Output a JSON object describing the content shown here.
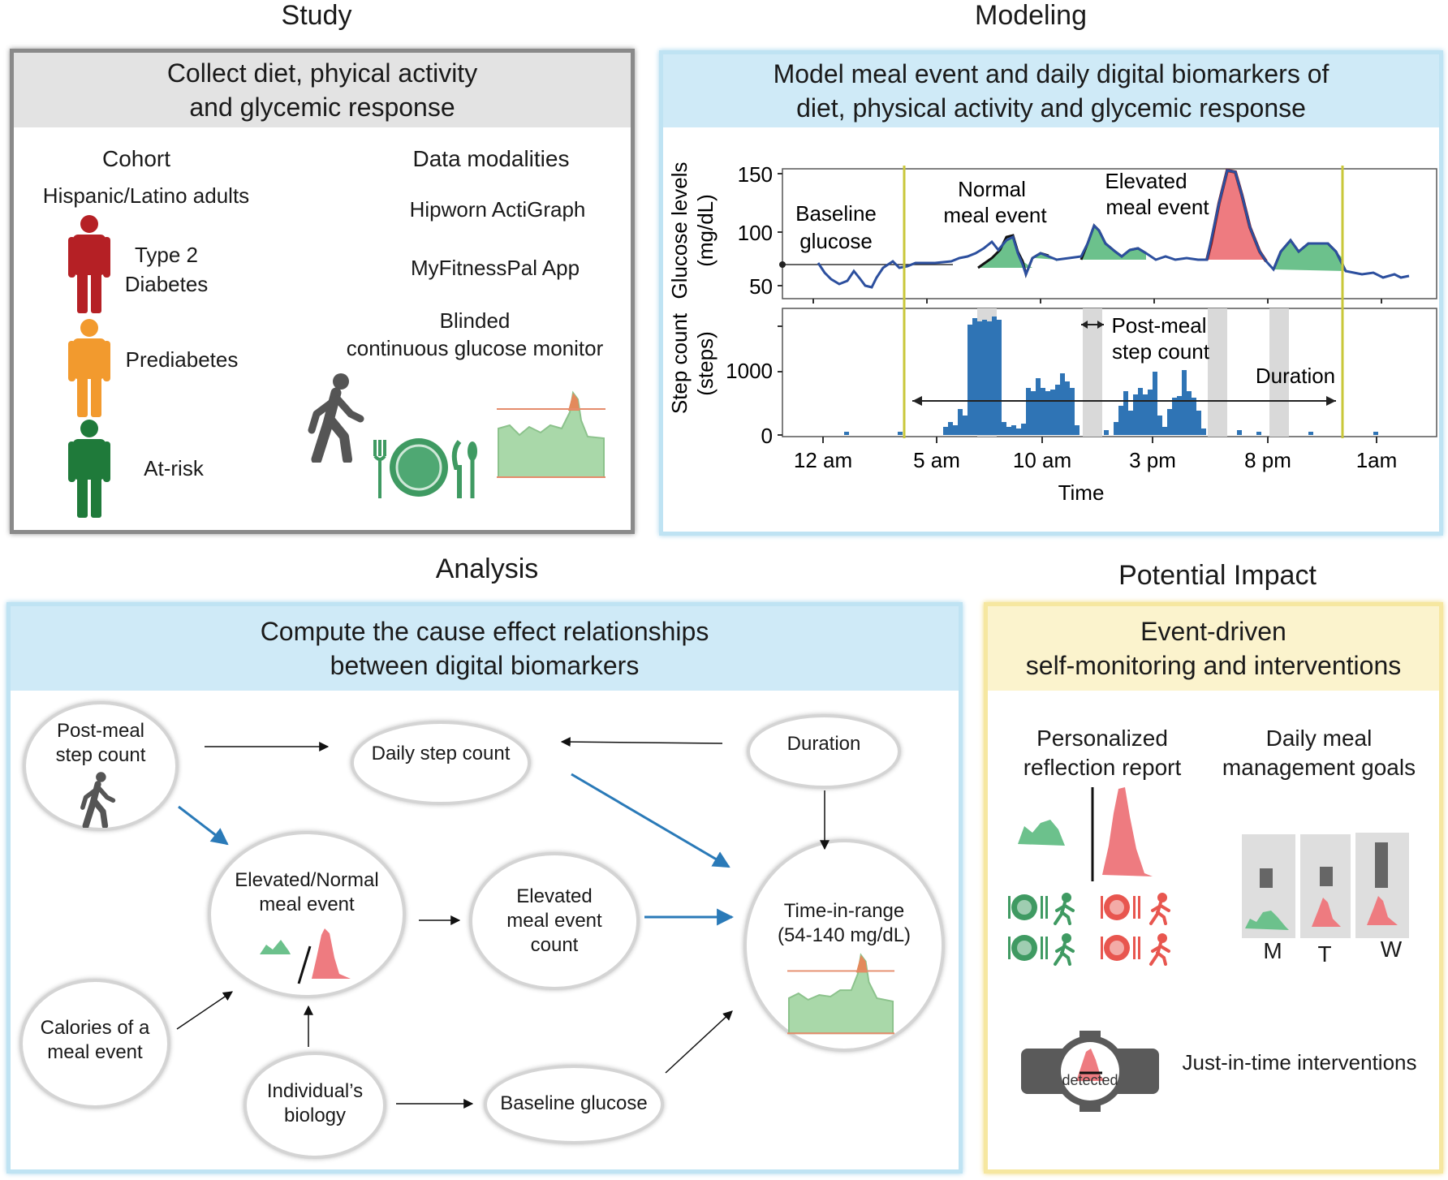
{
  "sections": {
    "study": "Study",
    "modeling": "Modeling",
    "analysis": "Analysis",
    "impact": "Potential Impact"
  },
  "study": {
    "header": [
      "Collect diet, phyical activity",
      "and glycemic response"
    ],
    "cohort_title": "Cohort",
    "cohort_subtitle": "Hispanic/Latino adults",
    "groups": [
      {
        "line1": "Type 2",
        "line2": "Diabetes",
        "color": "#b52025"
      },
      {
        "line1": "Prediabetes",
        "line2": "",
        "color": "#f29a2e"
      },
      {
        "line1": "At-risk",
        "line2": "",
        "color": "#1f7a3a"
      }
    ],
    "modalities_title": "Data modalities",
    "modalities": [
      "Hipworn ActiGraph",
      "MyFitnessPal App",
      "Blinded",
      "continuous glucose monitor"
    ]
  },
  "modeling": {
    "header": [
      "Model meal event and daily digital biomarkers of",
      "diet, physical activity and glycemic response"
    ],
    "glucose_ylabel": [
      "Glucose levels",
      "(mg/dL)"
    ],
    "glucose_ticks": [
      "150",
      "100",
      "50"
    ],
    "step_ylabel": [
      "Step count",
      "(steps)"
    ],
    "step_ticks": [
      "1000",
      "0"
    ],
    "x_ticks": [
      "12 am",
      "5 am",
      "10 am",
      "3 pm",
      "8 pm",
      "1am"
    ],
    "x_label": "Time",
    "annotations": {
      "baseline": [
        "Baseline",
        "glucose"
      ],
      "normal": [
        "Normal",
        "meal event"
      ],
      "elevated": [
        "Elevated",
        "meal event"
      ],
      "post_meal": [
        "Post-meal",
        "step count"
      ],
      "duration": "Duration"
    }
  },
  "analysis": {
    "header": [
      "Compute the cause effect relationships",
      "between digital biomarkers"
    ],
    "nodes": {
      "post_meal": [
        "Post-meal",
        "step count"
      ],
      "daily_step": "Daily step count",
      "duration": "Duration",
      "elevated_normal": [
        "Elevated/Normal",
        "meal event"
      ],
      "elevated_count": [
        "Elevated",
        "meal event",
        "count"
      ],
      "tir": [
        "Time-in-range",
        "(54-140 mg/dL)"
      ],
      "calories": [
        "Calories of a",
        "meal event"
      ],
      "biology": [
        "Individual’s",
        "biology"
      ],
      "baseline": "Baseline glucose"
    }
  },
  "impact": {
    "header": [
      "Event-driven",
      "self-monitoring and interventions"
    ],
    "report": [
      "Personalized",
      "reflection report"
    ],
    "goals": [
      "Daily meal",
      "management goals"
    ],
    "days": [
      "M",
      "T",
      "W"
    ],
    "jit": "Just-in-time interventions",
    "watch_label": "detected"
  },
  "colors": {
    "green": "#6cc18c",
    "red": "#ee7b80",
    "blue_arrow": "#2a7ab8",
    "bar_blue": "#2f74b5",
    "line_blue": "#2c4f9e",
    "yellow_line": "#c9c73a"
  }
}
